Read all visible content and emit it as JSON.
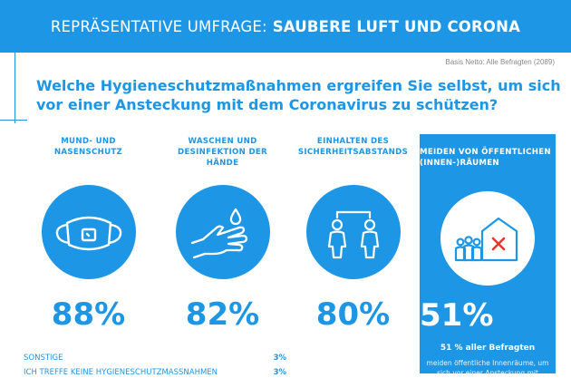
{
  "header": {
    "title_light": "REPRÄSENTATIVE UMFRAGE:",
    "title_bold": "SAUBERE LUFT UND CORONA"
  },
  "basis": "Basis Netto: Alle Befragten (2089)",
  "question": "Welche Hygieneschutzmaßnahmen ergreifen Sie selbst, um sich vor einer Ansteckung mit dem Coronavirus zu schützen?",
  "colors": {
    "accent": "#1d96e6",
    "white": "#ffffff",
    "cross": "#e6392e"
  },
  "chart_data": {
    "type": "bar",
    "unit": "%",
    "categories": [
      "MUND- UND NASENSCHUTZ",
      "WASCHEN UND DESINFEKTION DER HÄNDE",
      "EINHALTEN DES SICHERHEITSABSTANDS",
      "MEIDEN VON ÖFFENTLICHEN (INNEN-)RÄUMEN"
    ],
    "values": [
      88,
      82,
      80,
      51
    ],
    "icons": [
      "mask-icon",
      "hand-wash-icon",
      "distance-icon",
      "house-avoid-icon"
    ],
    "value_labels": [
      "88%",
      "82%",
      "80%",
      "51%"
    ],
    "highlight": {
      "index": 3,
      "line1": "51 % aller Befragten",
      "line2": "meiden öffentliche Innenräume, um sich vor einer Ansteckung mit"
    },
    "other": [
      {
        "label": "SONSTIGE",
        "value": 3,
        "value_label": "3%"
      },
      {
        "label": "ICH TREFFE KEINE HYGIENESCHUTZMASSNAHMEN",
        "value": 3,
        "value_label": "3%"
      }
    ]
  }
}
